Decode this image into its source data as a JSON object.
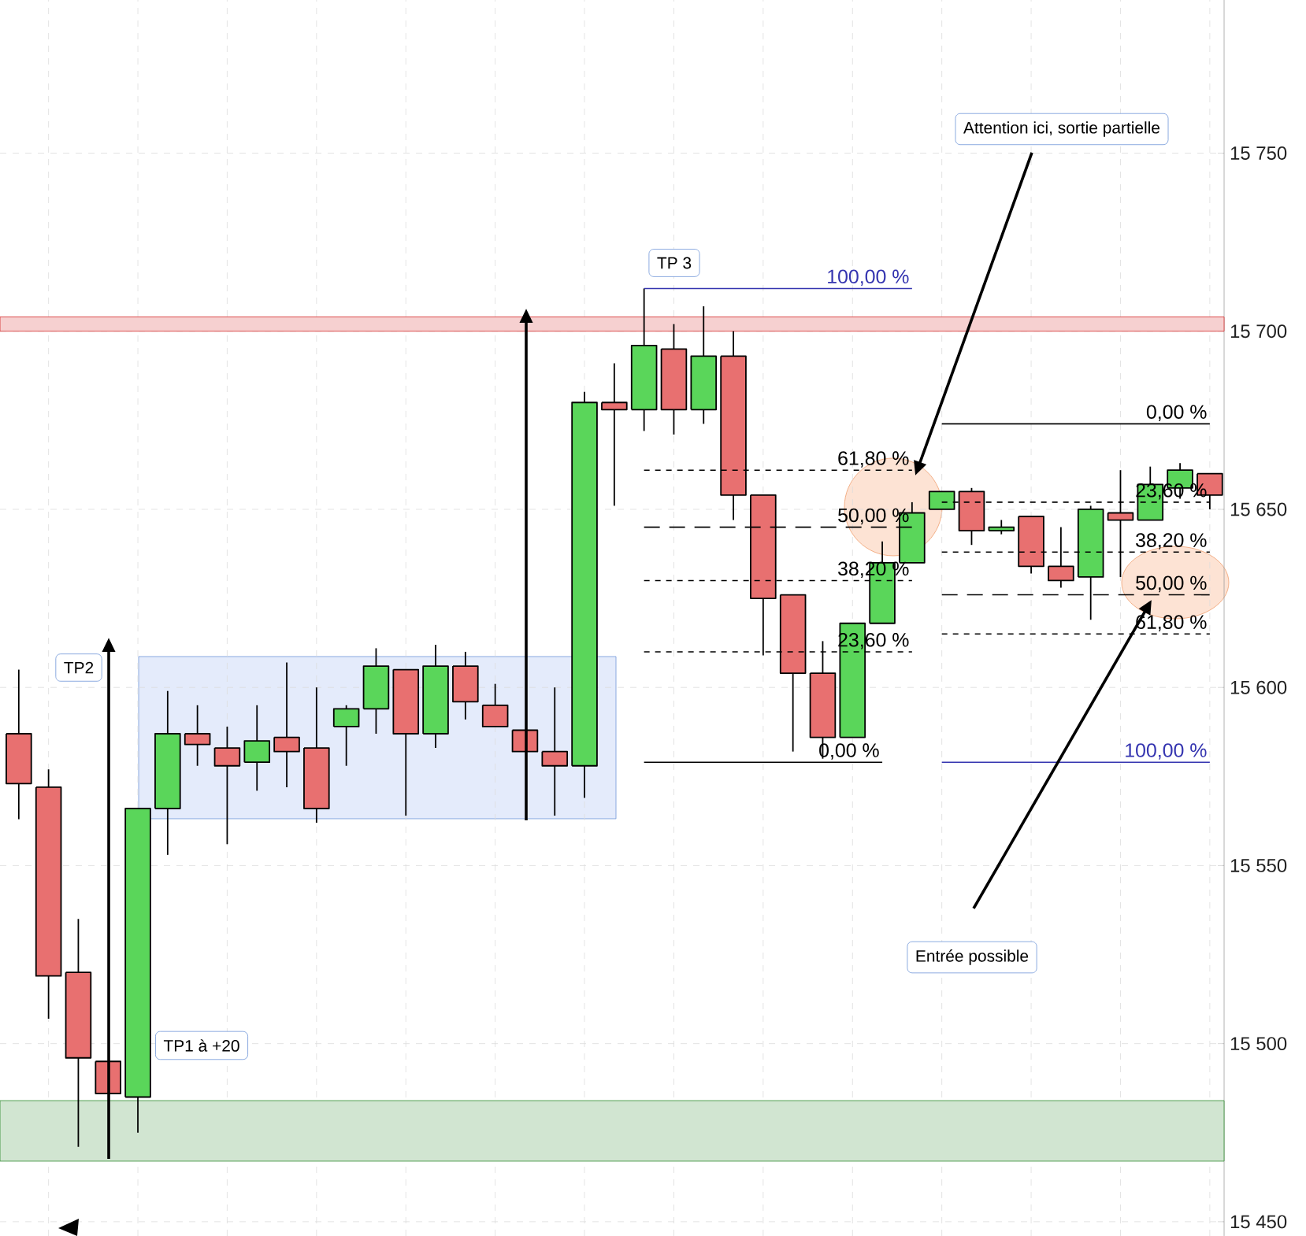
{
  "chart_data": {
    "type": "candlestick",
    "categories": [
      null,
      null,
      null,
      null,
      null,
      null,
      null,
      null,
      null,
      null,
      null,
      null,
      null,
      null,
      null,
      null,
      null,
      null,
      null,
      null,
      null,
      null,
      null,
      null,
      null,
      null,
      null,
      null,
      null,
      null,
      null,
      null,
      null,
      null,
      null,
      null,
      null,
      null,
      null,
      null,
      null
    ],
    "ohlc": [
      [
        15587,
        15605,
        15563,
        15573
      ],
      [
        15572,
        15577,
        15507,
        15519
      ],
      [
        15520,
        15535,
        15471,
        15496
      ],
      [
        15495,
        15495,
        15486,
        15486
      ],
      [
        15485,
        15566,
        15475,
        15566
      ],
      [
        15566,
        15599,
        15553,
        15587
      ],
      [
        15587,
        15595,
        15578,
        15584
      ],
      [
        15583,
        15589,
        15556,
        15578
      ],
      [
        15579,
        15595,
        15571,
        15585
      ],
      [
        15586,
        15607,
        15572,
        15582
      ],
      [
        15583,
        15600,
        15562,
        15566
      ],
      [
        15589,
        15595,
        15578,
        15594
      ],
      [
        15594,
        15611,
        15587,
        15606
      ],
      [
        15605,
        15605,
        15564,
        15587
      ],
      [
        15587,
        15612,
        15583,
        15606
      ],
      [
        15606,
        15610,
        15591,
        15596
      ],
      [
        15595,
        15601,
        15589,
        15589
      ],
      [
        15588,
        15588,
        15582,
        15582
      ],
      [
        15582,
        15600,
        15564,
        15578
      ],
      [
        15578,
        15683,
        15569,
        15680
      ],
      [
        15680,
        15691,
        15651,
        15678
      ],
      [
        15678,
        15712,
        15672,
        15696
      ],
      [
        15695,
        15702,
        15671,
        15678
      ],
      [
        15678,
        15707,
        15674,
        15693
      ],
      [
        15693,
        15700,
        15647,
        15654
      ],
      [
        15654,
        15654,
        15609,
        15625
      ],
      [
        15626,
        15626,
        15582,
        15604
      ],
      [
        15604,
        15613,
        15580,
        15586
      ],
      [
        15586,
        15618,
        15586,
        15618
      ],
      [
        15618,
        15641,
        15618,
        15635
      ],
      [
        15635,
        15652,
        15635,
        15649
      ],
      [
        15650,
        15655,
        15650,
        15655
      ],
      [
        15655,
        15656,
        15640,
        15644
      ],
      [
        15644,
        15647,
        15643,
        15645
      ],
      [
        15648,
        15648,
        15632,
        15634
      ],
      [
        15634,
        15645,
        15628,
        15630
      ],
      [
        15631,
        15651,
        15619,
        15650
      ],
      [
        15649,
        15661,
        15631,
        15647
      ],
      [
        15647,
        15662,
        15647,
        15657
      ],
      [
        15656,
        15663,
        15653,
        15661
      ],
      [
        15660,
        15660,
        15650,
        15654
      ]
    ],
    "colors": [
      "#e87070",
      "#e87070",
      "#e87070",
      "#e87070",
      "#5ad65a",
      "#5ad65a",
      "#e87070",
      "#e87070",
      "#5ad65a",
      "#e87070",
      "#e87070",
      "#5ad65a",
      "#5ad65a",
      "#e87070",
      "#5ad65a",
      "#e87070",
      "#e87070",
      "#e87070",
      "#e87070",
      "#5ad65a",
      "#e87070",
      "#5ad65a",
      "#e87070",
      "#5ad65a",
      "#e87070",
      "#e87070",
      "#e87070",
      "#e87070",
      "#5ad65a",
      "#5ad65a",
      "#5ad65a",
      "#5ad65a",
      "#e87070",
      "#5ad65a",
      "#e87070",
      "#e87070",
      "#5ad65a",
      "#e87070",
      "#5ad65a",
      "#5ad65a",
      "#e87070"
    ],
    "series": [
      {
        "type": "line",
        "name": "100,00 %",
        "values": [
          null,
          null,
          null,
          null,
          null,
          null,
          null,
          null,
          null,
          null,
          null,
          null,
          null,
          null,
          null,
          null,
          null,
          null,
          null,
          null,
          null,
          15712,
          15712,
          15712,
          15712,
          15712,
          15712,
          15712,
          15712,
          15712,
          15712,
          null,
          null,
          null,
          null,
          null,
          null,
          null,
          null,
          null,
          null
        ],
        "color": "#3535b0",
        "line_style": "solid"
      },
      {
        "type": "line",
        "name": "61,80 %",
        "values": [
          null,
          null,
          null,
          null,
          null,
          null,
          null,
          null,
          null,
          null,
          null,
          null,
          null,
          null,
          null,
          null,
          null,
          null,
          null,
          null,
          null,
          15661,
          15661,
          15661,
          15661,
          15661,
          15661,
          15661,
          15661,
          15661,
          15661,
          null,
          null,
          null,
          null,
          null,
          null,
          null,
          null,
          null,
          null
        ],
        "color": "#000000",
        "line_style": "dotted"
      },
      {
        "type": "line",
        "name": "50,00 %",
        "values": [
          null,
          null,
          null,
          null,
          null,
          null,
          null,
          null,
          null,
          null,
          null,
          null,
          null,
          null,
          null,
          null,
          null,
          null,
          null,
          null,
          null,
          15645,
          15645,
          15645,
          15645,
          15645,
          15645,
          15645,
          15645,
          15645,
          15645,
          null,
          null,
          null,
          null,
          null,
          null,
          null,
          null,
          null,
          null
        ],
        "color": "#000000",
        "line_style": "dashed"
      },
      {
        "type": "line",
        "name": "38,20 %",
        "values": [
          null,
          null,
          null,
          null,
          null,
          null,
          null,
          null,
          null,
          null,
          null,
          null,
          null,
          null,
          null,
          null,
          null,
          null,
          null,
          null,
          null,
          15630,
          15630,
          15630,
          15630,
          15630,
          15630,
          15630,
          15630,
          15630,
          15630,
          null,
          null,
          null,
          null,
          null,
          null,
          null,
          null,
          null,
          null
        ],
        "color": "#000000",
        "line_style": "dotted"
      },
      {
        "type": "line",
        "name": "23,60 %",
        "values": [
          null,
          null,
          null,
          null,
          null,
          null,
          null,
          null,
          null,
          null,
          null,
          null,
          null,
          null,
          null,
          null,
          null,
          null,
          null,
          null,
          null,
          15610,
          15610,
          15610,
          15610,
          15610,
          15610,
          15610,
          15610,
          15610,
          15610,
          null,
          null,
          null,
          null,
          null,
          null,
          null,
          null,
          null,
          null
        ],
        "color": "#000000",
        "line_style": "dotted"
      },
      {
        "type": "line",
        "name": "0,00 %",
        "values": [
          null,
          null,
          null,
          null,
          null,
          null,
          null,
          null,
          null,
          null,
          null,
          null,
          null,
          null,
          null,
          null,
          null,
          null,
          null,
          null,
          null,
          15579,
          15579,
          15579,
          15579,
          15579,
          15579,
          15579,
          15579,
          15579,
          null,
          null,
          null,
          null,
          null,
          null,
          null,
          null,
          null,
          null,
          null
        ],
        "color": "#000000",
        "line_style": "solid"
      },
      {
        "type": "line",
        "name": "0,00 %",
        "values": [
          null,
          null,
          null,
          null,
          null,
          null,
          null,
          null,
          null,
          null,
          null,
          null,
          null,
          null,
          null,
          null,
          null,
          null,
          null,
          null,
          null,
          null,
          null,
          null,
          null,
          null,
          null,
          null,
          null,
          null,
          null,
          15674,
          15674,
          15674,
          15674,
          15674,
          15674,
          15674,
          15674,
          15674,
          15674
        ],
        "color": "#000000",
        "line_style": "solid"
      },
      {
        "type": "line",
        "name": "23,60 %",
        "values": [
          null,
          null,
          null,
          null,
          null,
          null,
          null,
          null,
          null,
          null,
          null,
          null,
          null,
          null,
          null,
          null,
          null,
          null,
          null,
          null,
          null,
          null,
          null,
          null,
          null,
          null,
          null,
          null,
          null,
          null,
          null,
          15652,
          15652,
          15652,
          15652,
          15652,
          15652,
          15652,
          15652,
          15652,
          15652
        ],
        "color": "#000000",
        "line_style": "dotted"
      },
      {
        "type": "line",
        "name": "38,20 %",
        "values": [
          null,
          null,
          null,
          null,
          null,
          null,
          null,
          null,
          null,
          null,
          null,
          null,
          null,
          null,
          null,
          null,
          null,
          null,
          null,
          null,
          null,
          null,
          null,
          null,
          null,
          null,
          null,
          null,
          null,
          null,
          null,
          15638,
          15638,
          15638,
          15638,
          15638,
          15638,
          15638,
          15638,
          15638,
          15638
        ],
        "color": "#000000",
        "line_style": "dotted"
      },
      {
        "type": "line",
        "name": "50,00 %",
        "values": [
          null,
          null,
          null,
          null,
          null,
          null,
          null,
          null,
          null,
          null,
          null,
          null,
          null,
          null,
          null,
          null,
          null,
          null,
          null,
          null,
          null,
          null,
          null,
          null,
          null,
          null,
          null,
          null,
          null,
          null,
          null,
          15626,
          15626,
          15626,
          15626,
          15626,
          15626,
          15626,
          15626,
          15626,
          15626
        ],
        "color": "#000000",
        "line_style": "dashed"
      },
      {
        "type": "line",
        "name": "61,80 %",
        "values": [
          null,
          null,
          null,
          null,
          null,
          null,
          null,
          null,
          null,
          null,
          null,
          null,
          null,
          null,
          null,
          null,
          null,
          null,
          null,
          null,
          null,
          null,
          null,
          null,
          null,
          null,
          null,
          null,
          null,
          null,
          null,
          15615,
          15615,
          15615,
          15615,
          15615,
          15615,
          15615,
          15615,
          15615,
          15615
        ],
        "color": "#000000",
        "line_style": "dotted"
      },
      {
        "type": "line",
        "name": "100,00 %",
        "values": [
          null,
          null,
          null,
          null,
          null,
          null,
          null,
          null,
          null,
          null,
          null,
          null,
          null,
          null,
          null,
          null,
          null,
          null,
          null,
          null,
          null,
          null,
          null,
          null,
          null,
          null,
          null,
          null,
          null,
          null,
          null,
          15579,
          15579,
          15579,
          15579,
          15579,
          15579,
          15579,
          15579,
          15579,
          15579
        ],
        "color": "#3535b0",
        "line_style": "solid"
      }
    ],
    "bands": [
      {
        "axis": "y",
        "from": 15700,
        "to": 15704,
        "color": "#d42a2a"
      },
      {
        "axis": "y",
        "from": 15467,
        "to": 15484,
        "color": "#2e8b2e"
      }
    ],
    "annotations": [
      "TP2",
      "TP1 à +20",
      "TP 3",
      "Attention ici, sortie partielle",
      "Entrée possible"
    ],
    "ylim": [
      15446,
      15793
    ],
    "yticks": [
      {
        "value": 15450,
        "label": "15 450"
      },
      {
        "value": 15500,
        "label": "15 500"
      },
      {
        "value": 15550,
        "label": "15 550"
      },
      {
        "value": 15600,
        "label": "15 600"
      },
      {
        "value": 15650,
        "label": "15 650"
      },
      {
        "value": 15700,
        "label": "15 700"
      },
      {
        "value": 15750,
        "label": "15 750"
      }
    ],
    "grid": true,
    "tick_labels": "y"
  }
}
